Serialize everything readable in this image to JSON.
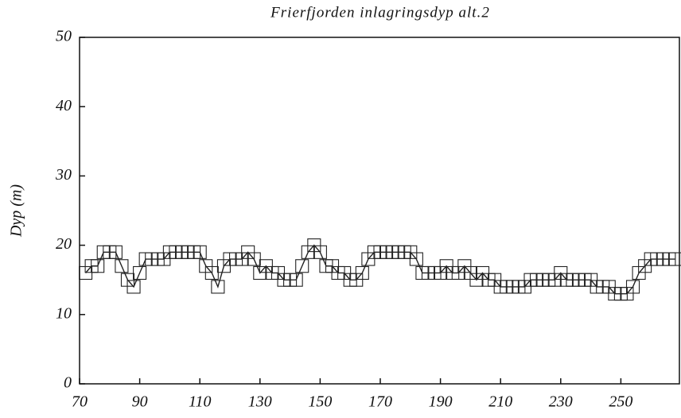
{
  "chart_data": {
    "type": "line",
    "title": "Frierfjorden inlagringsdyp alt.2",
    "ylabel": "Dyp (m)",
    "x": [
      72,
      74,
      76,
      78,
      80,
      82,
      84,
      86,
      88,
      90,
      92,
      94,
      96,
      98,
      100,
      102,
      104,
      106,
      108,
      110,
      112,
      114,
      116,
      118,
      120,
      122,
      124,
      126,
      128,
      130,
      132,
      134,
      136,
      138,
      140,
      142,
      144,
      146,
      148,
      150,
      152,
      154,
      156,
      158,
      160,
      162,
      164,
      166,
      168,
      170,
      172,
      174,
      176,
      178,
      180,
      182,
      184,
      186,
      188,
      190,
      192,
      194,
      196,
      198,
      200,
      202,
      204,
      206,
      208,
      210,
      212,
      214,
      216,
      218,
      220,
      222,
      224,
      226,
      228,
      230,
      232,
      234,
      236,
      238,
      240,
      242,
      244,
      246,
      248,
      250,
      252,
      254,
      256,
      258,
      260,
      262,
      264,
      266,
      268
    ],
    "series": [
      {
        "name": "Dyp",
        "color": "#222222",
        "values": [
          16,
          17,
          17,
          19,
          19,
          19,
          17,
          15,
          14,
          16,
          18,
          18,
          18,
          18,
          19,
          19,
          19,
          19,
          19,
          19,
          17,
          16,
          14,
          17,
          18,
          18,
          18,
          19,
          18,
          16,
          17,
          16,
          16,
          15,
          15,
          15,
          17,
          19,
          20,
          19,
          17,
          17,
          16,
          16,
          15,
          15,
          16,
          18,
          19,
          19,
          19,
          19,
          19,
          19,
          19,
          18,
          16,
          16,
          16,
          16,
          17,
          16,
          16,
          17,
          16,
          15,
          16,
          15,
          15,
          14,
          14,
          14,
          14,
          14,
          15,
          15,
          15,
          15,
          15,
          16,
          15,
          15,
          15,
          15,
          15,
          14,
          14,
          14,
          13,
          13,
          13,
          14,
          16,
          17,
          18,
          18,
          18,
          18,
          18
        ]
      }
    ],
    "xlim": [
      70,
      270
    ],
    "ylim": [
      0,
      50
    ],
    "xticks": [
      70,
      90,
      110,
      130,
      150,
      170,
      190,
      210,
      230,
      250
    ],
    "yticks": [
      0,
      10,
      20,
      30,
      40,
      50
    ]
  }
}
